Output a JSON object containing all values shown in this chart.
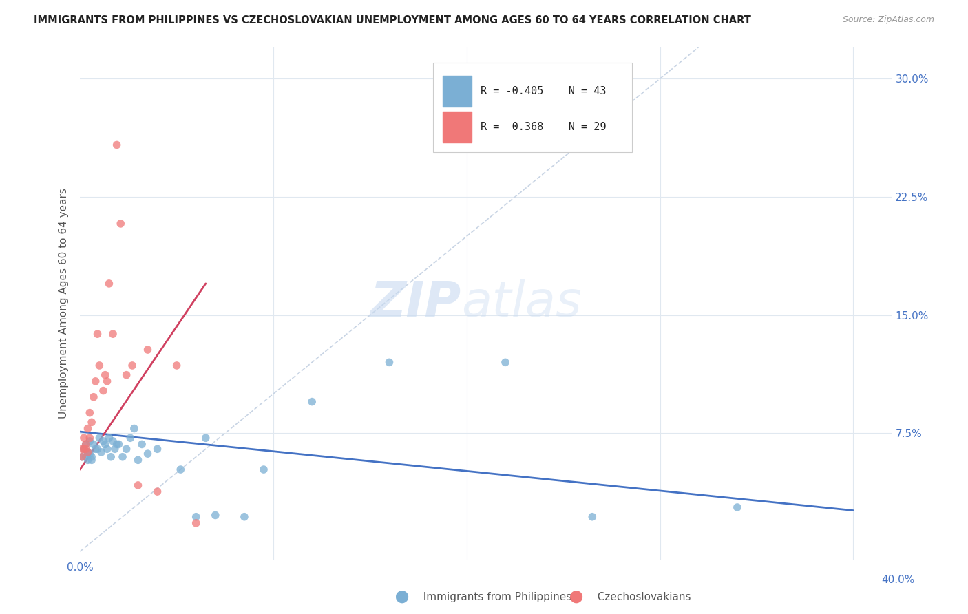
{
  "title": "IMMIGRANTS FROM PHILIPPINES VS CZECHOSLOVAKIAN UNEMPLOYMENT AMONG AGES 60 TO 64 YEARS CORRELATION CHART",
  "source": "Source: ZipAtlas.com",
  "ylabel": "Unemployment Among Ages 60 to 64 years",
  "ytick_values": [
    0.0,
    0.075,
    0.15,
    0.225,
    0.3
  ],
  "ytick_labels": [
    "",
    "7.5%",
    "15.0%",
    "22.5%",
    "30.0%"
  ],
  "xlim": [
    0.0,
    0.42
  ],
  "ylim": [
    -0.005,
    0.32
  ],
  "legend_entries": [
    {
      "color": "#a8c8e8",
      "R": "-0.405",
      "N": "43",
      "label": "Immigrants from Philippines"
    },
    {
      "color": "#f4a0b0",
      "R": " 0.368",
      "N": "29",
      "label": "Czechoslovakians"
    }
  ],
  "blue_scatter_x": [
    0.001,
    0.002,
    0.003,
    0.003,
    0.004,
    0.004,
    0.005,
    0.005,
    0.006,
    0.006,
    0.007,
    0.008,
    0.009,
    0.01,
    0.011,
    0.012,
    0.013,
    0.014,
    0.015,
    0.016,
    0.017,
    0.018,
    0.019,
    0.02,
    0.022,
    0.024,
    0.026,
    0.028,
    0.03,
    0.032,
    0.035,
    0.04,
    0.052,
    0.06,
    0.065,
    0.07,
    0.085,
    0.095,
    0.12,
    0.16,
    0.22,
    0.265,
    0.34
  ],
  "blue_scatter_y": [
    0.06,
    0.065,
    0.06,
    0.068,
    0.063,
    0.058,
    0.07,
    0.062,
    0.06,
    0.058,
    0.068,
    0.065,
    0.065,
    0.072,
    0.063,
    0.07,
    0.068,
    0.065,
    0.072,
    0.06,
    0.07,
    0.065,
    0.068,
    0.068,
    0.06,
    0.065,
    0.072,
    0.078,
    0.058,
    0.068,
    0.062,
    0.065,
    0.052,
    0.022,
    0.072,
    0.023,
    0.022,
    0.052,
    0.095,
    0.12,
    0.12,
    0.022,
    0.028
  ],
  "pink_scatter_x": [
    0.001,
    0.001,
    0.002,
    0.002,
    0.003,
    0.003,
    0.004,
    0.004,
    0.005,
    0.005,
    0.006,
    0.007,
    0.008,
    0.009,
    0.01,
    0.012,
    0.013,
    0.014,
    0.015,
    0.017,
    0.019,
    0.021,
    0.024,
    0.027,
    0.03,
    0.035,
    0.04,
    0.05,
    0.06
  ],
  "pink_scatter_y": [
    0.06,
    0.065,
    0.065,
    0.072,
    0.068,
    0.065,
    0.078,
    0.063,
    0.088,
    0.072,
    0.082,
    0.098,
    0.108,
    0.138,
    0.118,
    0.102,
    0.112,
    0.108,
    0.17,
    0.138,
    0.258,
    0.208,
    0.112,
    0.118,
    0.042,
    0.128,
    0.038,
    0.118,
    0.018
  ],
  "blue_line_x": [
    0.0,
    0.4
  ],
  "blue_line_y": [
    0.076,
    0.026
  ],
  "pink_line_x": [
    0.0,
    0.065
  ],
  "pink_line_y": [
    0.052,
    0.17
  ],
  "diag_line_x": [
    0.0,
    0.32
  ],
  "diag_line_y": [
    0.0,
    0.32
  ],
  "blue_color": "#7bafd4",
  "pink_color": "#f07878",
  "blue_line_color": "#4472c4",
  "pink_line_color": "#d04060",
  "diag_line_color": "#c8d4e4",
  "watermark_zip": "ZIP",
  "watermark_atlas": "atlas",
  "background_color": "#ffffff",
  "grid_color": "#e0e8f0"
}
